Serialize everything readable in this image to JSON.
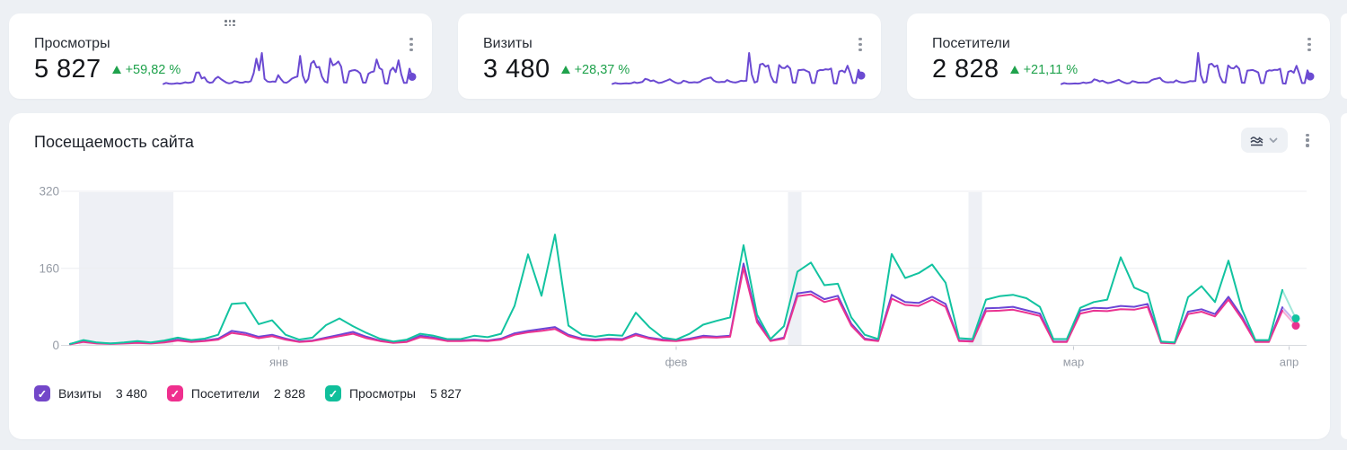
{
  "colors": {
    "page_bg": "#edf0f4",
    "card_bg": "#ffffff",
    "accent_purple": "#6b4ad2",
    "accent_magenta": "#ea3390",
    "accent_teal": "#12c3a0",
    "delta_green": "#1fa24c",
    "band_fill": "#eef0f5",
    "grid_line": "#ecedf0",
    "axis_line": "#d7dade",
    "axis_text": "#959ba5"
  },
  "cards": [
    {
      "title": "Просмотры",
      "value": "5 827",
      "delta": "+59,82 %",
      "trend": "up",
      "series_key": "views",
      "menu_icon": "kebab-menu-icon"
    },
    {
      "title": "Визиты",
      "value": "3 480",
      "delta": "+28,37 %",
      "trend": "up",
      "series_key": "visits",
      "menu_icon": "kebab-menu-icon"
    },
    {
      "title": "Посетители",
      "value": "2 828",
      "delta": "+21,11 %",
      "trend": "up",
      "series_key": "visitors",
      "menu_icon": "kebab-menu-icon"
    }
  ],
  "chart": {
    "title": "Посещаемость сайта",
    "chart_type_icon": "area-chart-icon",
    "chevron_icon": "chevron-down-icon",
    "menu_icon": "kebab-menu-icon"
  },
  "chart_data": {
    "type": "line",
    "title": "Посещаемость сайта",
    "grid": true,
    "legend_position": "bottom",
    "y_axis": {
      "ticks": [
        0,
        160,
        320
      ],
      "max": 320
    },
    "x_axis": {
      "labels": [
        "янв",
        "фев",
        "мар",
        "апр"
      ],
      "month_starts": [
        0,
        31,
        59,
        90,
        91
      ],
      "holiday_bands": [
        [
          0.67,
          7.67
        ],
        [
          53.3,
          54.3
        ],
        [
          66.7,
          67.7
        ]
      ]
    },
    "series": [
      {
        "key": "visits",
        "name": "Визиты",
        "total": "3 480",
        "color": "#6b46d5",
        "checkbox_color": "#7347c9",
        "end_dot": false,
        "checked": true,
        "values": [
          3,
          8,
          5,
          4,
          5,
          6,
          5,
          7,
          12,
          8,
          10,
          14,
          30,
          26,
          18,
          22,
          14,
          8,
          10,
          16,
          22,
          28,
          18,
          10,
          6,
          8,
          20,
          16,
          10,
          10,
          12,
          10,
          14,
          25,
          30,
          34,
          38,
          22,
          14,
          12,
          14,
          13,
          24,
          16,
          12,
          10,
          14,
          20,
          18,
          20,
          170,
          54,
          10,
          16,
          108,
          112,
          96,
          103,
          45,
          14,
          10,
          105,
          90,
          88,
          101,
          86,
          10,
          9,
          77,
          78,
          80,
          73,
          66,
          8,
          8,
          72,
          78,
          77,
          82,
          80,
          86,
          6,
          5,
          70,
          75,
          65,
          101,
          60,
          8,
          8,
          79,
          48
        ]
      },
      {
        "key": "visitors",
        "name": "Посетители",
        "total": "2 828",
        "color": "#ea3390",
        "checkbox_color": "#ef2f8e",
        "end_dot": true,
        "checked": true,
        "values": [
          2,
          7,
          4,
          3,
          4,
          5,
          4,
          6,
          10,
          7,
          9,
          12,
          26,
          22,
          15,
          19,
          12,
          7,
          9,
          14,
          19,
          24,
          15,
          9,
          5,
          7,
          17,
          14,
          9,
          9,
          10,
          9,
          12,
          22,
          27,
          30,
          34,
          19,
          12,
          10,
          12,
          11,
          21,
          14,
          10,
          9,
          12,
          17,
          16,
          18,
          161,
          48,
          9,
          14,
          102,
          106,
          90,
          97,
          41,
          12,
          9,
          97,
          84,
          82,
          95,
          80,
          9,
          8,
          71,
          72,
          74,
          68,
          61,
          7,
          7,
          66,
          72,
          71,
          75,
          74,
          80,
          5,
          4,
          65,
          70,
          60,
          95,
          55,
          7,
          7,
          72,
          41
        ]
      },
      {
        "key": "views",
        "name": "Просмотры",
        "total": "5 827",
        "color": "#12c3a0",
        "checkbox_color": "#10bf9b",
        "end_dot": true,
        "checked": true,
        "values": [
          3,
          11,
          6,
          4,
          6,
          9,
          6,
          10,
          16,
          11,
          14,
          22,
          86,
          88,
          44,
          52,
          22,
          12,
          16,
          42,
          56,
          40,
          26,
          14,
          8,
          12,
          24,
          20,
          13,
          13,
          20,
          17,
          24,
          82,
          189,
          103,
          230,
          41,
          22,
          18,
          22,
          20,
          68,
          38,
          16,
          12,
          24,
          43,
          51,
          58,
          208,
          64,
          13,
          40,
          153,
          172,
          125,
          128,
          58,
          22,
          13,
          190,
          140,
          150,
          168,
          130,
          15,
          13,
          95,
          102,
          105,
          98,
          80,
          13,
          13,
          78,
          90,
          95,
          183,
          120,
          108,
          8,
          6,
          100,
          123,
          90,
          176,
          75,
          11,
          11,
          115,
          56
        ]
      }
    ]
  }
}
